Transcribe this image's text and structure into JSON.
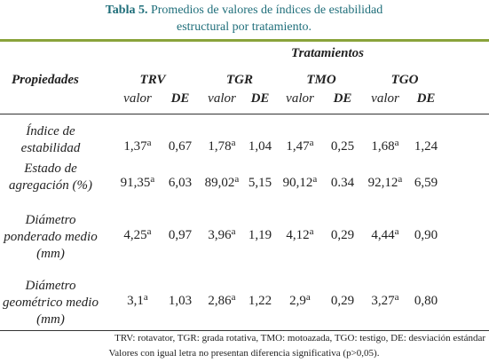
{
  "header": {
    "label": "Tabla 5.",
    "title_lines": [
      "Promedios de valores de índices de estabilidad",
      "estructural por tratamiento."
    ]
  },
  "table": {
    "group_header": "Tratamientos",
    "row_header": "Propiedades",
    "treatments": [
      "TRV",
      "TGR",
      "TMO",
      "TGO"
    ],
    "subheaders": [
      "valor",
      "DE"
    ],
    "rows": [
      {
        "label": [
          "Índice de",
          "estabilidad"
        ],
        "cells": [
          {
            "value": "1,37",
            "sup": "a"
          },
          "0,67",
          {
            "value": "1,78",
            "sup": "a"
          },
          "1,04",
          {
            "value": "1,47",
            "sup": "a"
          },
          "0,25",
          {
            "value": "1,68",
            "sup": "a"
          },
          "1,24"
        ]
      },
      {
        "label": [
          "Estado de",
          "agregación (%)"
        ],
        "cells": [
          {
            "value": "91,35",
            "sup": "a"
          },
          "6,03",
          {
            "value": "89,02",
            "sup": "a"
          },
          "5,15",
          {
            "value": "90,12",
            "sup": "a"
          },
          "0.34",
          {
            "value": "92,12",
            "sup": "a"
          },
          "6,59"
        ]
      },
      {
        "label": [
          "Diámetro",
          "ponderado medio",
          "(mm)"
        ],
        "cells": [
          {
            "value": "4,25",
            "sup": "a"
          },
          "0,97",
          {
            "value": "3,96",
            "sup": "a"
          },
          "1,19",
          {
            "value": "4,12",
            "sup": "a"
          },
          "0,29",
          {
            "value": "4,44",
            "sup": "a"
          },
          "0,90"
        ]
      },
      {
        "label": [
          "Diámetro",
          "geométrico medio",
          "(mm)"
        ],
        "cells": [
          {
            "value": "3,1",
            "sup": "a"
          },
          "1,03",
          {
            "value": "2,86",
            "sup": "a"
          },
          "1,22",
          {
            "value": "2,9",
            "sup": "a"
          },
          "0,29",
          {
            "value": "3,27",
            "sup": "a"
          },
          "0,80"
        ]
      }
    ]
  },
  "footnotes": [
    "TRV: rotavator, TGR: grada rotativa, TMO: motoazada, TGO: testigo, DE: desviación estándar",
    "Valores con igual letra no presentan diferencia significativa (p>0,05)."
  ]
}
